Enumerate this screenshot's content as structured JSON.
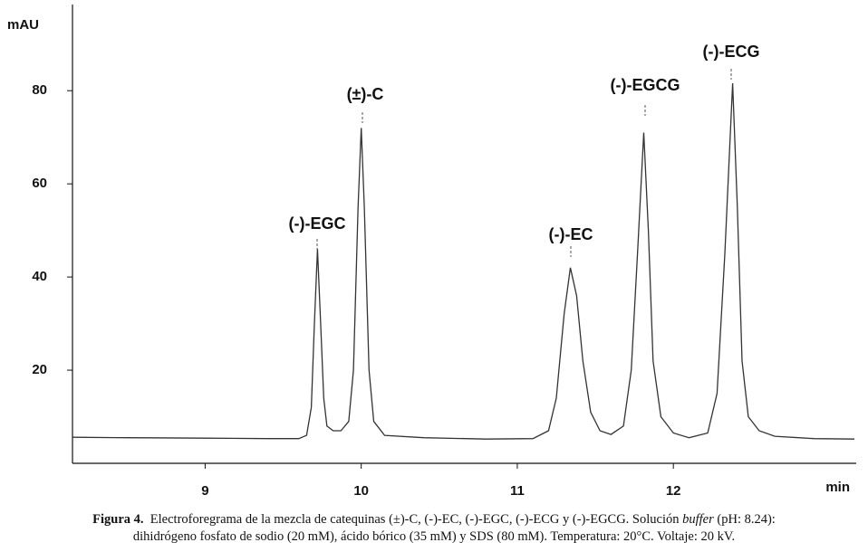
{
  "chart_data": {
    "type": "line",
    "y_label": "mAU",
    "x_label": "min",
    "x": [
      8.15,
      8.5,
      9.0,
      9.4,
      9.6,
      9.65,
      9.68,
      9.7,
      9.72,
      9.74,
      9.76,
      9.78,
      9.82,
      9.87,
      9.92,
      9.95,
      9.98,
      10.0,
      10.02,
      10.05,
      10.08,
      10.15,
      10.4,
      10.8,
      11.1,
      11.2,
      11.25,
      11.3,
      11.34,
      11.38,
      11.42,
      11.47,
      11.53,
      11.6,
      11.68,
      11.73,
      11.77,
      11.81,
      11.84,
      11.87,
      11.92,
      12.0,
      12.1,
      12.22,
      12.28,
      12.33,
      12.38,
      12.41,
      12.44,
      12.48,
      12.55,
      12.65,
      12.9,
      13.16
    ],
    "values": [
      5.6,
      5.5,
      5.4,
      5.3,
      5.3,
      6,
      12,
      30,
      46,
      30,
      14,
      8,
      7,
      7,
      9,
      20,
      55,
      72,
      55,
      20,
      9,
      6,
      5.5,
      5.2,
      5.3,
      7,
      14,
      32,
      42,
      36,
      22,
      11,
      7,
      6.2,
      8,
      20,
      45,
      71,
      50,
      22,
      10,
      6.5,
      5.5,
      6.5,
      15,
      45,
      81.6,
      55,
      22,
      10,
      7,
      5.8,
      5.3,
      5.2
    ],
    "color": "#333333",
    "xlim": [
      8.15,
      13.16
    ],
    "xticks": [
      9,
      10,
      11,
      12
    ],
    "ylim": [
      0,
      98.5
    ],
    "yticks": [
      20,
      40,
      60,
      80
    ],
    "grid": false,
    "annotations": [
      "(-)-EGC",
      "(±)-C",
      "(-)-EC",
      "(-)-EGCG",
      "(-)-ECG"
    ]
  },
  "caption": {
    "label": "Figura 4.",
    "text": "Electroforegrama de la mezcla de catequinas (±)-C, (-)-EC, (-)-EGC, (-)-ECG y (-)-EGCG.  Solución",
    "italic": "buffer",
    "text_after": "(pH: 8.24):",
    "line2": "dihidrógeno fosfato de sodio (20 mM), ácido bórico (35 mM) y SDS (80 mM). Temperatura: 20°C. Voltaje: 20 kV."
  }
}
